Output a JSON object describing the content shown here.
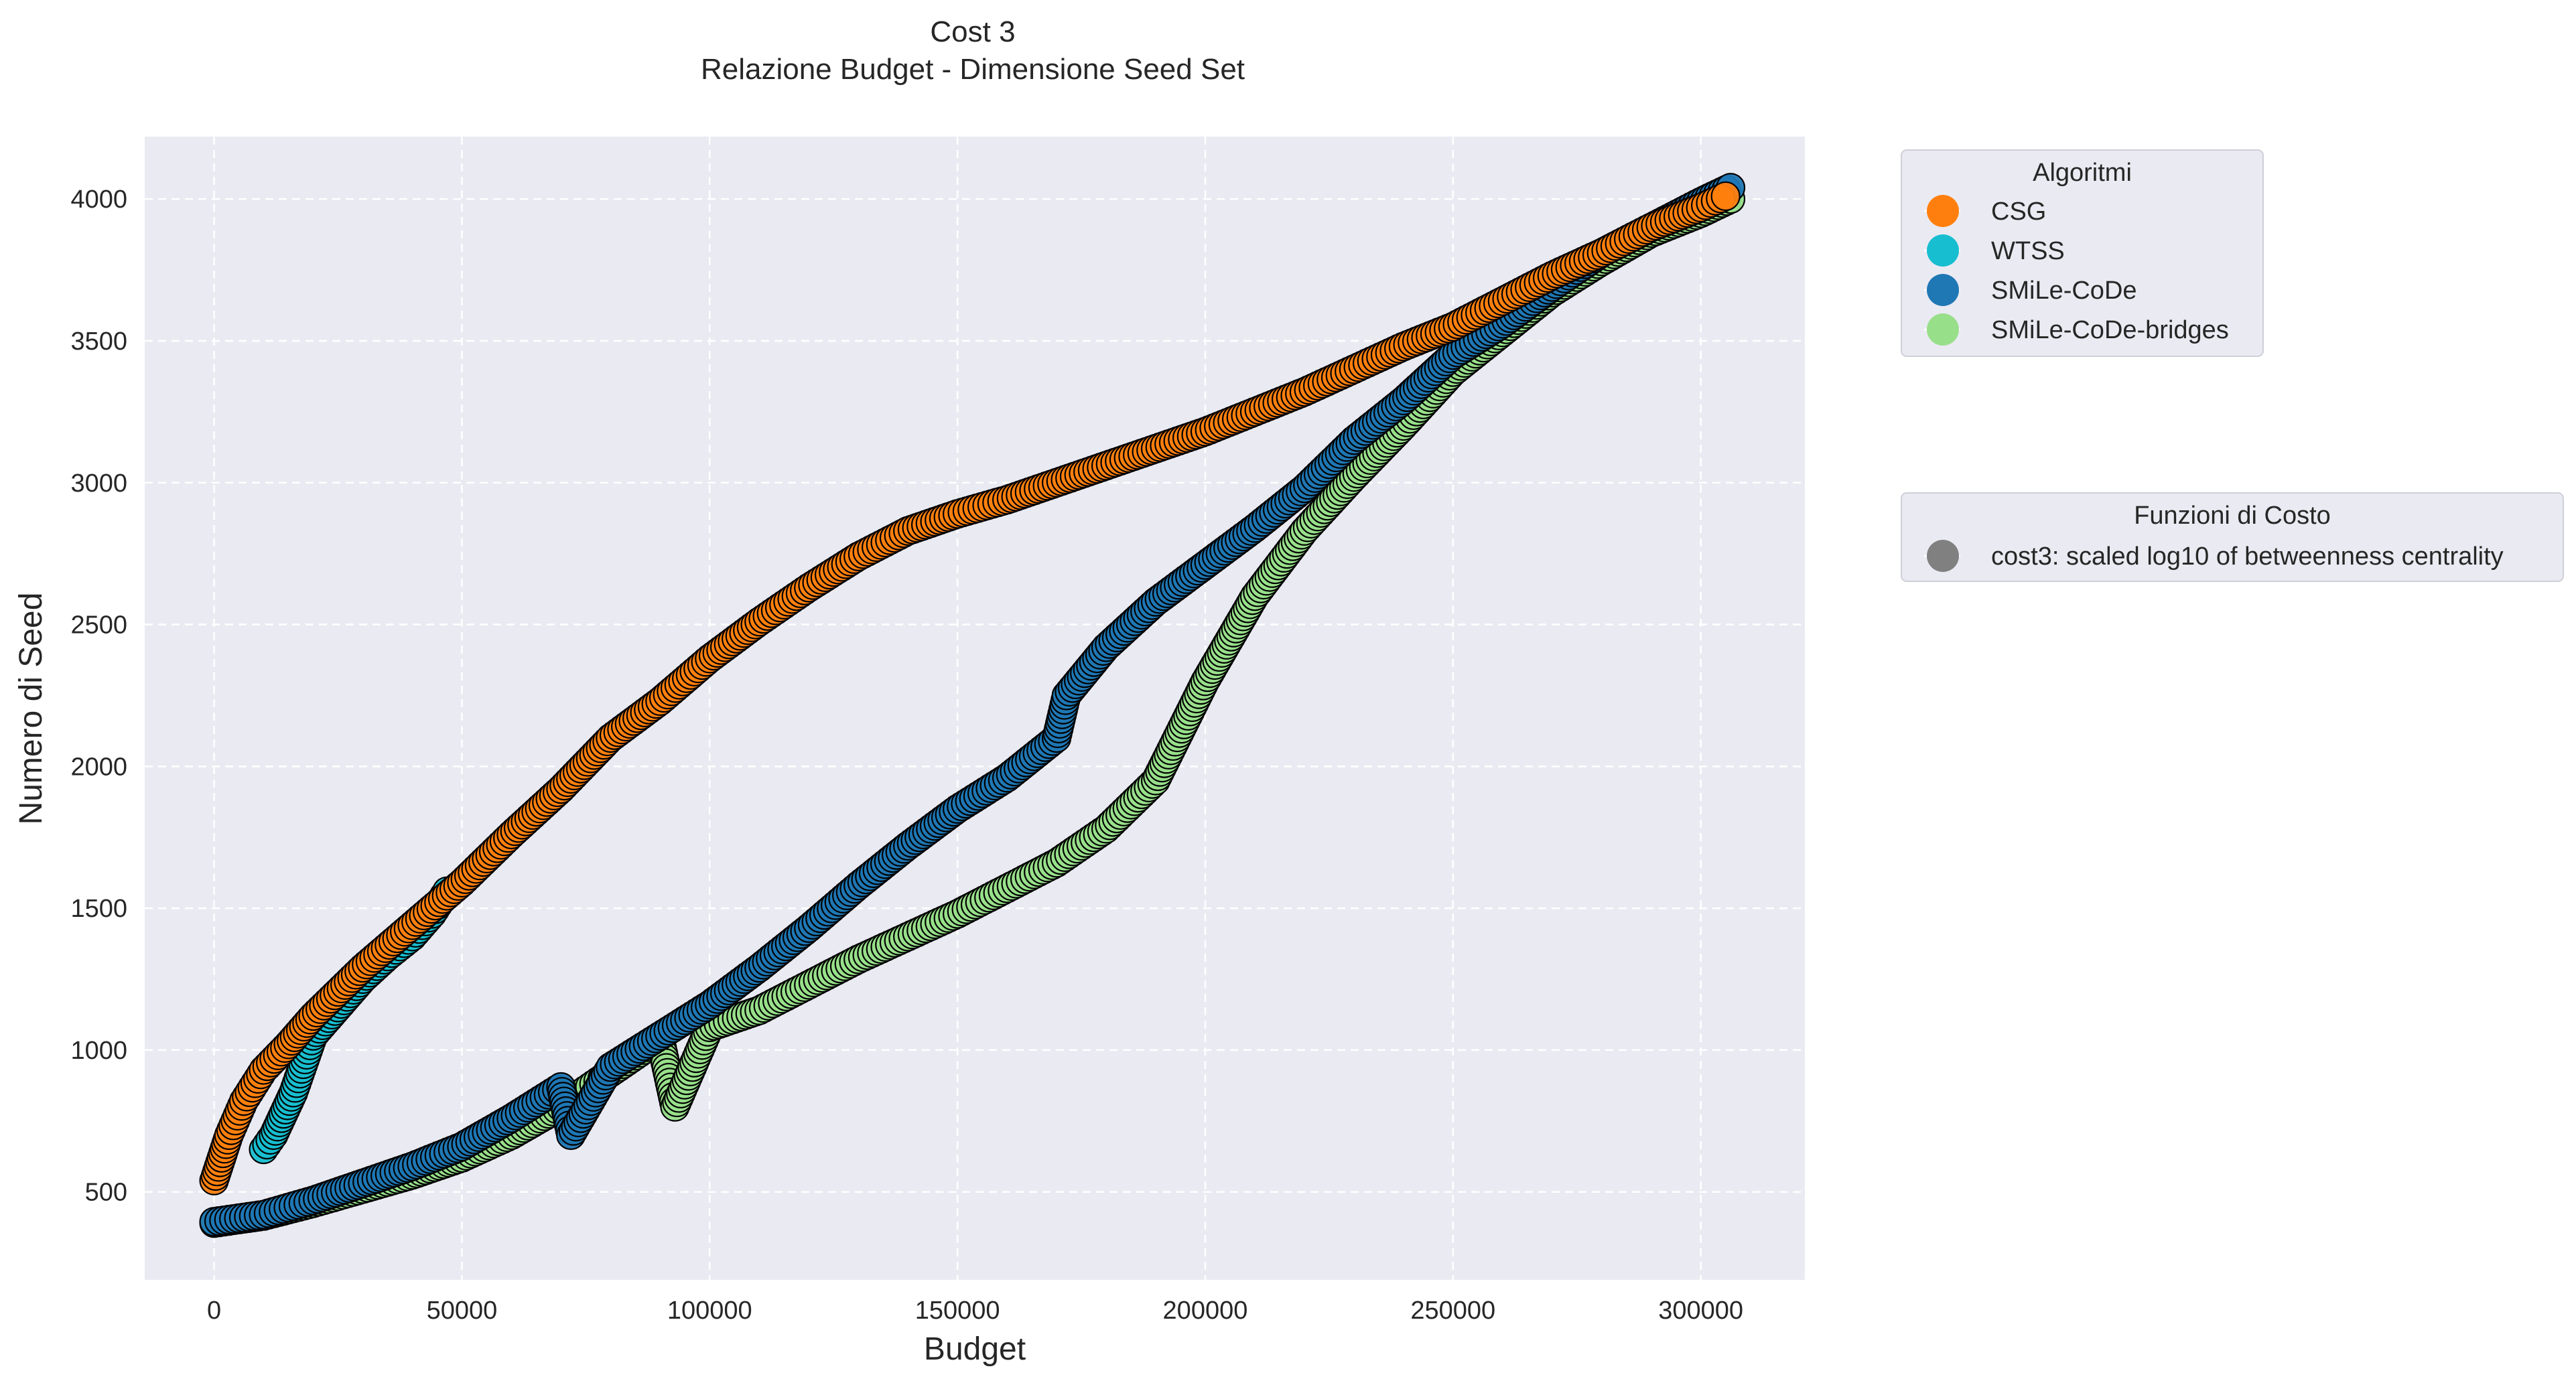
{
  "chart_data": {
    "type": "scatter",
    "title": "Cost 3",
    "subtitle": "Relazione Budget - Dimensione Seed Set",
    "xlabel": "Budget",
    "ylabel": "Numero di Seed",
    "xlim": [
      -14000,
      321000
    ],
    "ylim": [
      190,
      4220
    ],
    "xticks": [
      0,
      50000,
      100000,
      150000,
      200000,
      250000,
      300000
    ],
    "xtick_labels": [
      "0",
      "50000",
      "100000",
      "150000",
      "200000",
      "250000",
      "300000"
    ],
    "yticks": [
      500,
      1000,
      1500,
      2000,
      2500,
      3000,
      3500,
      4000
    ],
    "ytick_labels": [
      "500",
      "1000",
      "1500",
      "2000",
      "2500",
      "3000",
      "3500",
      "4000"
    ],
    "grid": true,
    "legend_placement": "outside-right",
    "legends": [
      {
        "title": "Algoritmi",
        "entries": [
          {
            "label": "CSG",
            "color": "#ff7f0e"
          },
          {
            "label": "WTSS",
            "color": "#17becf"
          },
          {
            "label": "SMiLe-CoDe",
            "color": "#1f77b4"
          },
          {
            "label": "SMiLe-CoDe-bridges",
            "color": "#98df8a"
          }
        ]
      },
      {
        "title": "Funzioni di Costo",
        "entries": [
          {
            "label": "cost3: scaled log10 of betweenness centrality",
            "color": "#808080"
          }
        ]
      }
    ],
    "series": [
      {
        "name": "CSG",
        "color": "#ff7f0e",
        "shown_as": "upper curve, markers mostly hidden beneath black edges",
        "x": [
          0,
          3000,
          6000,
          10000,
          15000,
          20000,
          30000,
          40000,
          50000,
          60000,
          70000,
          80000,
          90000,
          100000,
          110000,
          120000,
          130000,
          140000,
          150000,
          160000,
          170000,
          180000,
          190000,
          200000,
          210000,
          220000,
          230000,
          240000,
          250000,
          260000,
          270000,
          280000,
          290000,
          300000,
          305000
        ],
        "y": [
          540,
          700,
          820,
          930,
          1020,
          1120,
          1290,
          1440,
          1590,
          1760,
          1920,
          2100,
          2230,
          2380,
          2510,
          2630,
          2740,
          2830,
          2890,
          2940,
          3000,
          3060,
          3120,
          3180,
          3250,
          3320,
          3400,
          3480,
          3550,
          3640,
          3730,
          3810,
          3900,
          3970,
          4010
        ]
      },
      {
        "name": "WTSS",
        "color": "#17becf",
        "x": [
          10000,
          12000,
          16000,
          18000,
          20000,
          25000,
          30000,
          35000,
          40000,
          44000,
          47000
        ],
        "y": [
          650,
          700,
          850,
          950,
          1050,
          1150,
          1250,
          1330,
          1400,
          1480,
          1560
        ]
      },
      {
        "name": "SMiLe-CoDe",
        "color": "#1f77b4",
        "x": [
          0,
          10000,
          20000,
          30000,
          40000,
          50000,
          60000,
          70000,
          72000,
          80000,
          90000,
          100000,
          110000,
          120000,
          130000,
          140000,
          150000,
          160000,
          170000,
          172000,
          180000,
          190000,
          200000,
          210000,
          220000,
          230000,
          240000,
          250000,
          260000,
          270000,
          280000,
          290000,
          300000,
          306000
        ],
        "y": [
          395,
          420,
          470,
          530,
          590,
          660,
          760,
          870,
          700,
          940,
          1050,
          1160,
          1290,
          1430,
          1580,
          1720,
          1850,
          1960,
          2100,
          2250,
          2420,
          2580,
          2710,
          2840,
          2980,
          3150,
          3290,
          3450,
          3560,
          3690,
          3810,
          3900,
          3990,
          4040
        ]
      },
      {
        "name": "SMiLe-CoDe-bridges",
        "color": "#98df8a",
        "x": [
          0,
          10000,
          20000,
          30000,
          40000,
          50000,
          60000,
          70000,
          80000,
          90000,
          93000,
          100000,
          110000,
          120000,
          130000,
          140000,
          150000,
          160000,
          170000,
          180000,
          190000,
          200000,
          210000,
          220000,
          230000,
          240000,
          250000,
          260000,
          270000,
          280000,
          290000,
          300000,
          306000
        ],
        "y": [
          390,
          415,
          460,
          510,
          560,
          620,
          700,
          800,
          920,
          1040,
          800,
          1080,
          1140,
          1230,
          1320,
          1400,
          1480,
          1570,
          1660,
          1780,
          1950,
          2300,
          2600,
          2830,
          3020,
          3200,
          3390,
          3530,
          3670,
          3780,
          3880,
          3950,
          4000
        ]
      }
    ]
  }
}
